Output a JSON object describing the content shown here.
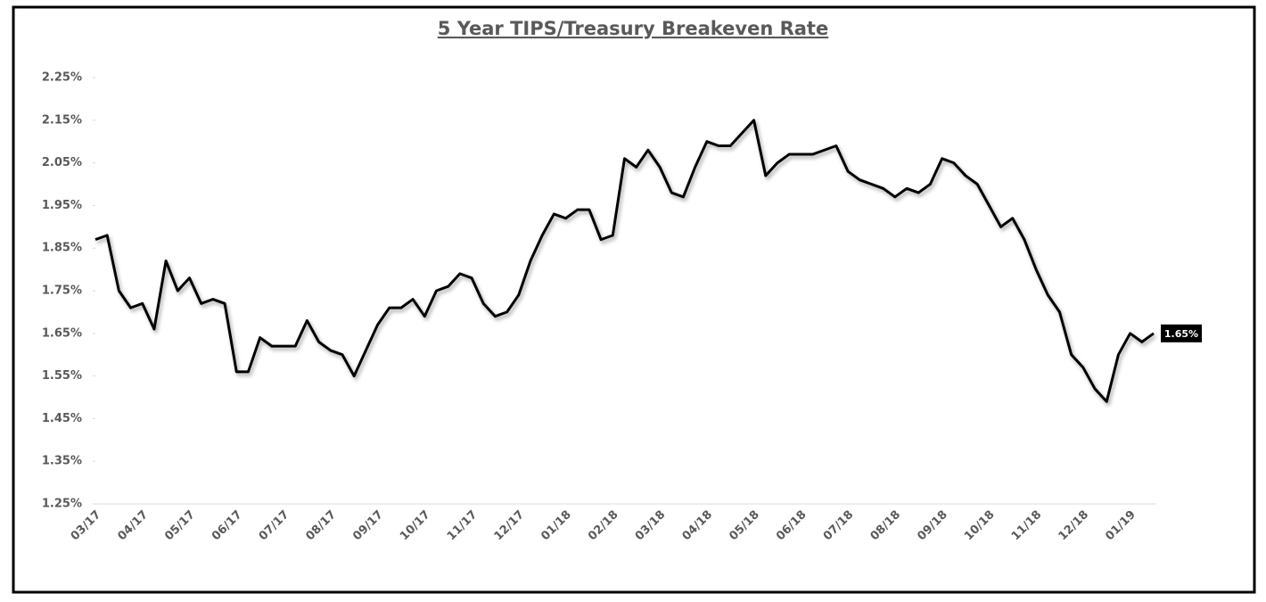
{
  "chart_data": {
    "type": "line",
    "title": "5 Year TIPS/Treasury Breakeven Rate",
    "categories": [
      "03/17",
      null,
      null,
      null,
      "04/17",
      null,
      null,
      null,
      "05/17",
      null,
      null,
      null,
      "06/17",
      null,
      null,
      null,
      "07/17",
      null,
      null,
      null,
      "08/17",
      null,
      null,
      null,
      "09/17",
      null,
      null,
      null,
      "10/17",
      null,
      null,
      null,
      "11/17",
      null,
      null,
      null,
      "12/17",
      null,
      null,
      null,
      "01/18",
      null,
      null,
      null,
      "02/18",
      null,
      null,
      null,
      "03/18",
      null,
      null,
      null,
      "04/18",
      null,
      null,
      null,
      "05/18",
      null,
      null,
      null,
      "06/18",
      null,
      null,
      null,
      "07/18",
      null,
      null,
      null,
      "08/18",
      null,
      null,
      null,
      "09/18",
      null,
      null,
      null,
      "10/18",
      null,
      null,
      null,
      "11/18",
      null,
      null,
      null,
      "12/18",
      null,
      null,
      null,
      "01/19",
      null,
      null
    ],
    "series": [
      {
        "color": "#000000",
        "values": [
          1.87,
          1.88,
          1.75,
          1.71,
          1.72,
          1.66,
          1.82,
          1.75,
          1.78,
          1.72,
          1.73,
          1.72,
          1.56,
          1.56,
          1.64,
          1.62,
          1.62,
          1.62,
          1.68,
          1.63,
          1.61,
          1.6,
          1.55,
          1.61,
          1.67,
          1.71,
          1.71,
          1.73,
          1.69,
          1.75,
          1.76,
          1.79,
          1.78,
          1.72,
          1.69,
          1.7,
          1.74,
          1.82,
          1.88,
          1.93,
          1.92,
          1.94,
          1.94,
          1.87,
          1.88,
          2.06,
          2.04,
          2.08,
          2.04,
          1.98,
          1.97,
          2.04,
          2.1,
          2.09,
          2.09,
          2.12,
          2.15,
          2.02,
          2.05,
          2.07,
          2.07,
          2.07,
          2.08,
          2.09,
          2.03,
          2.01,
          2.0,
          1.99,
          1.97,
          1.99,
          1.98,
          2.0,
          2.06,
          2.05,
          2.02,
          2.0,
          1.95,
          1.9,
          1.92,
          1.87,
          1.8,
          1.74,
          1.7,
          1.6,
          1.57,
          1.52,
          1.49,
          1.6,
          1.65,
          1.63,
          1.65
        ],
        "value_labels": [
          null,
          null,
          null,
          null,
          null,
          null,
          null,
          null,
          null,
          null,
          null,
          null,
          null,
          null,
          null,
          null,
          null,
          null,
          null,
          null,
          null,
          null,
          null,
          null,
          null,
          null,
          null,
          null,
          null,
          null,
          null,
          null,
          null,
          null,
          null,
          null,
          null,
          null,
          null,
          null,
          null,
          null,
          null,
          null,
          null,
          null,
          null,
          null,
          null,
          null,
          null,
          null,
          null,
          null,
          null,
          null,
          null,
          null,
          null,
          null,
          null,
          null,
          null,
          null,
          null,
          null,
          null,
          null,
          null,
          null,
          null,
          null,
          null,
          null,
          null,
          null,
          null,
          null,
          null,
          null,
          null,
          null,
          null,
          null,
          null,
          null,
          null,
          null,
          null,
          null,
          "1.65%"
        ]
      }
    ],
    "ylim": [
      1.25,
      2.25
    ],
    "yticks": [
      {
        "value": 1.25,
        "label": "1.25%"
      },
      {
        "value": 1.35,
        "label": "1.35%"
      },
      {
        "value": 1.45,
        "label": "1.45%"
      },
      {
        "value": 1.55,
        "label": "1.55%"
      },
      {
        "value": 1.65,
        "label": "1.65%"
      },
      {
        "value": 1.75,
        "label": "1.75%"
      },
      {
        "value": 1.85,
        "label": "1.85%"
      },
      {
        "value": 1.95,
        "label": "1.95%"
      },
      {
        "value": 2.05,
        "label": "2.05%"
      },
      {
        "value": 2.15,
        "label": "2.15%"
      },
      {
        "value": 2.25,
        "label": "2.25%"
      }
    ],
    "grid": false
  }
}
